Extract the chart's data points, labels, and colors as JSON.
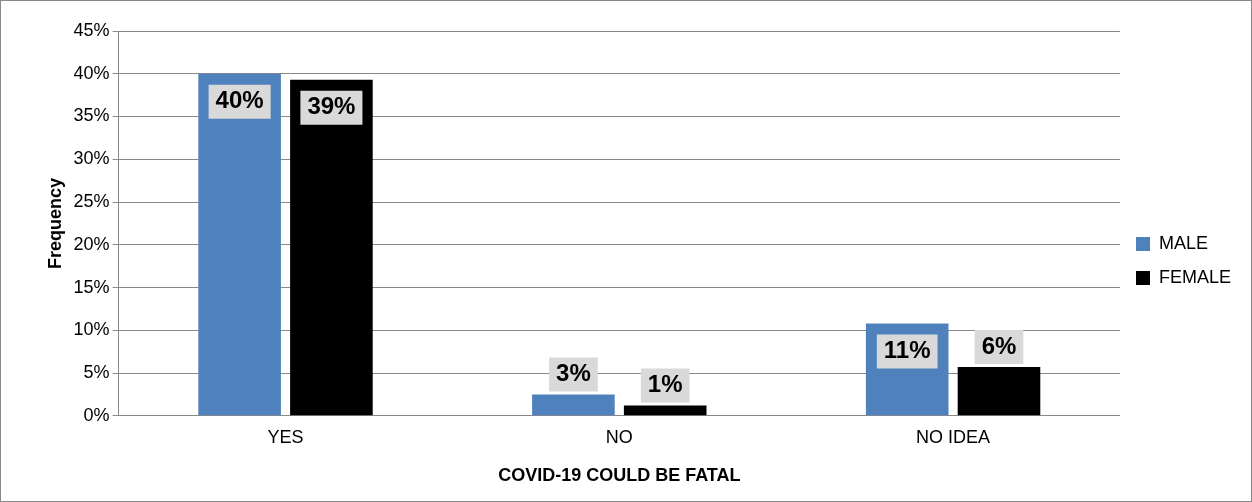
{
  "chart_data": {
    "type": "bar",
    "xlabel": "COVID-19 COULD BE FATAL",
    "ylabel": "Frequency",
    "categories": [
      "YES",
      "NO",
      "NO IDEA"
    ],
    "series": [
      {
        "name": "MALE",
        "color": "#4f81bd",
        "values": [
          40,
          2.5,
          10.8
        ],
        "value_labels": [
          "40%",
          "3%",
          "11%"
        ]
      },
      {
        "name": "FEMALE",
        "color": "#000000",
        "values": [
          39.3,
          1.2,
          5.7
        ],
        "value_labels": [
          "39%",
          "1%",
          "6%"
        ]
      }
    ],
    "ylim": [
      0,
      45
    ],
    "yticks": [
      {
        "value": 0,
        "label": "0%"
      },
      {
        "value": 5,
        "label": "5%"
      },
      {
        "value": 10,
        "label": "10%"
      },
      {
        "value": 15,
        "label": "15%"
      },
      {
        "value": 20,
        "label": "20%"
      },
      {
        "value": 25,
        "label": "25%"
      },
      {
        "value": 30,
        "label": "30%"
      },
      {
        "value": 35,
        "label": "35%"
      },
      {
        "value": 40,
        "label": "40%"
      },
      {
        "value": 45,
        "label": "45%"
      }
    ],
    "grid": "y",
    "legend": "right"
  }
}
